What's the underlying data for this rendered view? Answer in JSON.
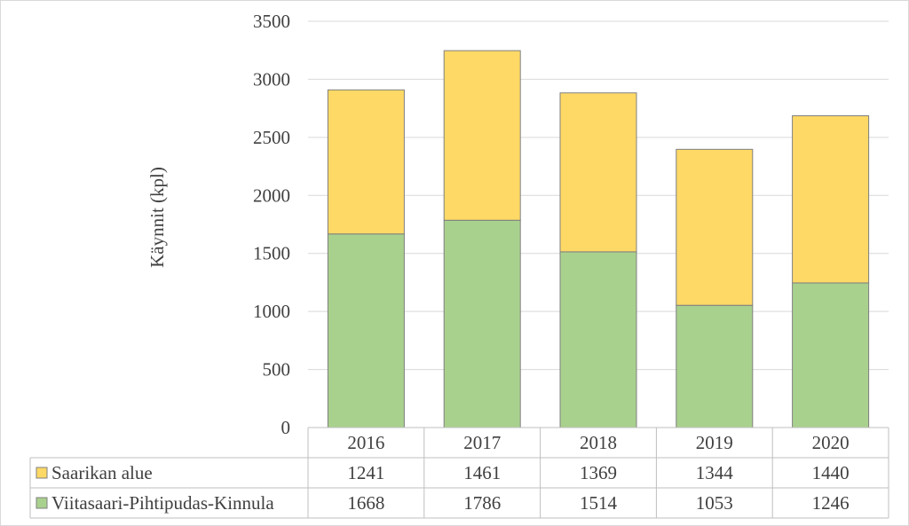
{
  "chart_data": {
    "type": "bar",
    "stacked": true,
    "title": "",
    "ylabel": "Käynnit (kpl)",
    "xlabel": "",
    "ylim": [
      0,
      3500
    ],
    "yticks": [
      0,
      500,
      1000,
      1500,
      2000,
      2500,
      3000,
      3500
    ],
    "grid": true,
    "legend": "data-table",
    "categories": [
      "2016",
      "2017",
      "2018",
      "2019",
      "2020"
    ],
    "series": [
      {
        "name": "Viitasaari-Pihtipudas-Kinnula",
        "color": "#a9d18e",
        "values": [
          1668,
          1786,
          1514,
          1053,
          1246
        ]
      },
      {
        "name": "Saarikan alue",
        "color": "#ffd966",
        "values": [
          1241,
          1461,
          1369,
          1344,
          1440
        ]
      }
    ],
    "table_order": [
      "Saarikan alue",
      "Viitasaari-Pihtipudas-Kinnula"
    ]
  }
}
